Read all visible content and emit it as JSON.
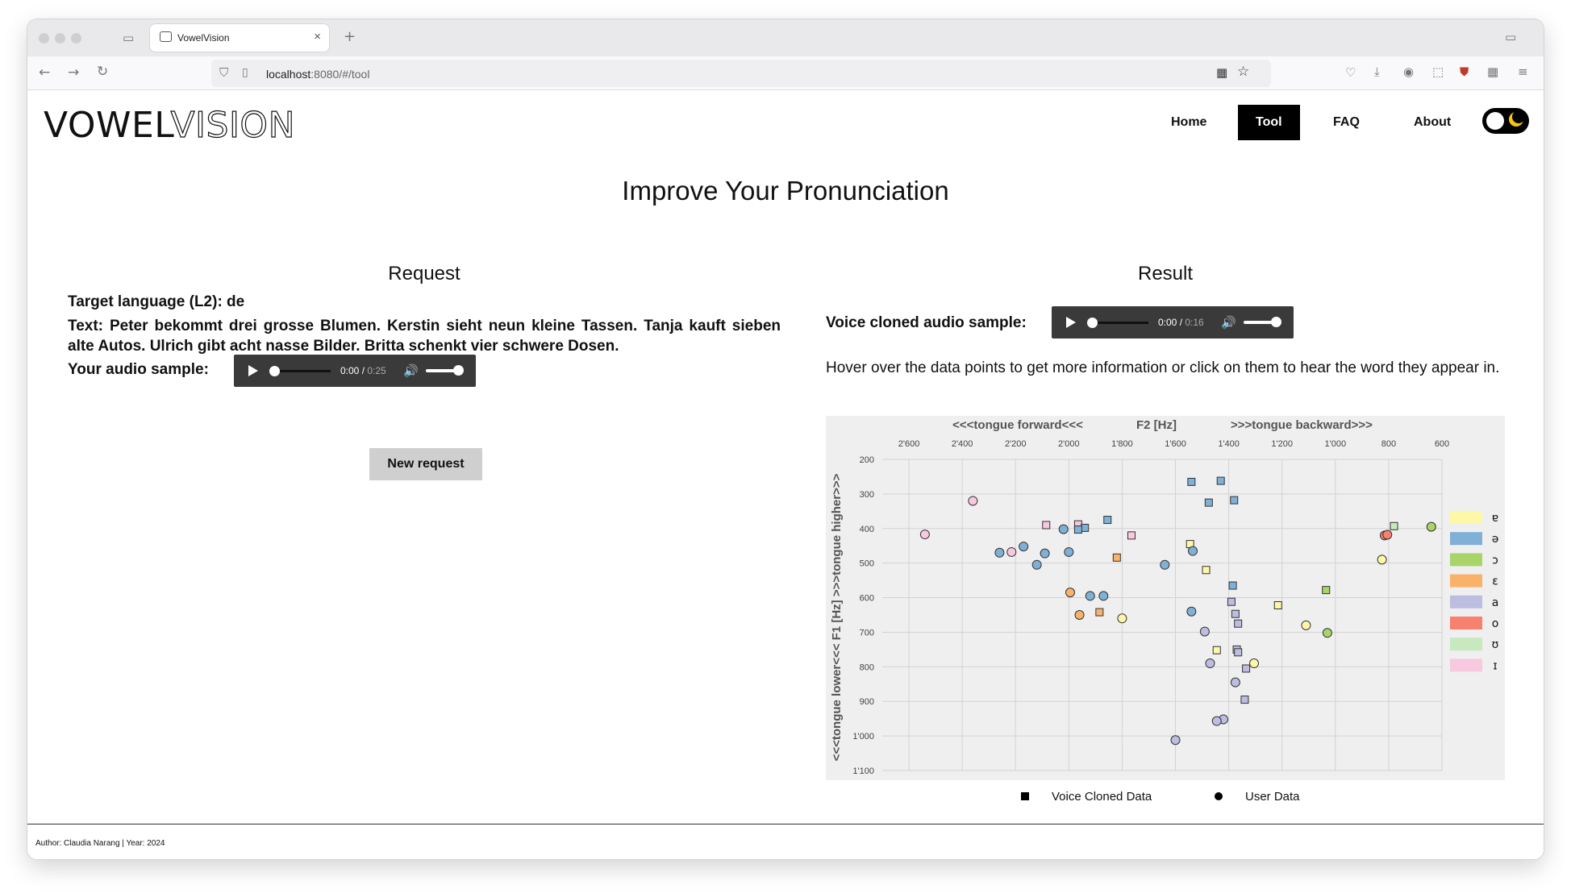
{
  "browser": {
    "tab_title": "VowelVision",
    "url_host": "localhost",
    "url_rest": ":8080/#/tool"
  },
  "header": {
    "logo_bold": "VOWEL",
    "logo_light": "VISION",
    "nav": [
      "Home",
      "Tool",
      "FAQ",
      "About"
    ],
    "active_nav": "Tool"
  },
  "page_title": "Improve Your Pronunciation",
  "request": {
    "title": "Request",
    "target_language": "Target language (L2): de",
    "text": "Text: Peter bekommt drei grosse Blumen. Kerstin sieht neun kleine Tassen. Tanja kauft sieben alte Autos. Ulrich gibt acht nasse Bilder. Britta schenkt vier schwere Dosen.",
    "audio_label": "Your audio sample:",
    "audio_current": "0:00",
    "audio_duration": "0:25",
    "button": "New request"
  },
  "result": {
    "title": "Result",
    "audio_label": "Voice cloned audio sample:",
    "audio_current": "0:00",
    "audio_duration": "0:16",
    "hint": "Hover over the data points to get more information or click on them to hear the word they appear in.",
    "legend_square": "Voice Cloned Data",
    "legend_circle": "User Data"
  },
  "footer": "Author: Claudia Narang | Year: 2024",
  "chart_data": {
    "type": "scatter",
    "x_title_left": "<<<tongue forward<<<",
    "x_title_mid": "F2 [Hz]",
    "x_title_right": ">>>tongue backward>>>",
    "y_title": "<<<tongue lower<<<    F1 [Hz]    >>>tongue higher>>>",
    "xlim": [
      2700,
      600
    ],
    "ylim": [
      200,
      1100
    ],
    "x_ticks": [
      2600,
      2400,
      2200,
      2000,
      1800,
      1600,
      1400,
      1200,
      1000,
      800,
      600
    ],
    "x_tick_labels": [
      "2'600",
      "2'400",
      "2'200",
      "2'000",
      "1'800",
      "1'600",
      "1'400",
      "1'200",
      "1'000",
      "800",
      "600"
    ],
    "y_ticks": [
      200,
      300,
      400,
      500,
      600,
      700,
      800,
      900,
      1000,
      1100
    ],
    "y_tick_labels": [
      "200",
      "300",
      "400",
      "500",
      "600",
      "700",
      "800",
      "900",
      "1'000",
      "1'100"
    ],
    "grid": true,
    "legend_position": "right",
    "vowels": [
      {
        "symbol": "ɐ",
        "color": "#fdf7a8"
      },
      {
        "symbol": "ə",
        "color": "#7fb0d6"
      },
      {
        "symbol": "ɔ",
        "color": "#a8d46a"
      },
      {
        "symbol": "ɛ",
        "color": "#f9b26a"
      },
      {
        "symbol": "a",
        "color": "#bdbde0"
      },
      {
        "symbol": "o",
        "color": "#f7806e"
      },
      {
        "symbol": "ʊ",
        "color": "#c8e8c0"
      },
      {
        "symbol": "ɪ",
        "color": "#f8c8de"
      }
    ],
    "series": [
      {
        "name": "Voice Cloned Data",
        "marker": "square",
        "points": [
          {
            "x": 1540,
            "y": 265,
            "v": "ə"
          },
          {
            "x": 1430,
            "y": 262,
            "v": "ə"
          },
          {
            "x": 1475,
            "y": 325,
            "v": "ə"
          },
          {
            "x": 1380,
            "y": 318,
            "v": "ə"
          },
          {
            "x": 2085,
            "y": 390,
            "v": "ɪ"
          },
          {
            "x": 1965,
            "y": 388,
            "v": "ɪ"
          },
          {
            "x": 1855,
            "y": 375,
            "v": "ə"
          },
          {
            "x": 1940,
            "y": 398,
            "v": "ə"
          },
          {
            "x": 1965,
            "y": 403,
            "v": "ə"
          },
          {
            "x": 1765,
            "y": 420,
            "v": "ɪ"
          },
          {
            "x": 1545,
            "y": 445,
            "v": "ɐ"
          },
          {
            "x": 1485,
            "y": 520,
            "v": "ɐ"
          },
          {
            "x": 1820,
            "y": 484,
            "v": "ɛ"
          },
          {
            "x": 1385,
            "y": 565,
            "v": "ə"
          },
          {
            "x": 1390,
            "y": 612,
            "v": "a"
          },
          {
            "x": 1375,
            "y": 647,
            "v": "a"
          },
          {
            "x": 1365,
            "y": 675,
            "v": "a"
          },
          {
            "x": 1215,
            "y": 622,
            "v": "ɐ"
          },
          {
            "x": 1035,
            "y": 578,
            "v": "ɔ"
          },
          {
            "x": 780,
            "y": 393,
            "v": "ʊ"
          },
          {
            "x": 1885,
            "y": 642,
            "v": "ɛ"
          },
          {
            "x": 1445,
            "y": 752,
            "v": "ɐ"
          },
          {
            "x": 1370,
            "y": 750,
            "v": "a"
          },
          {
            "x": 1365,
            "y": 758,
            "v": "a"
          },
          {
            "x": 1335,
            "y": 805,
            "v": "a"
          },
          {
            "x": 1340,
            "y": 895,
            "v": "a"
          }
        ]
      },
      {
        "name": "User Data",
        "marker": "circle",
        "points": [
          {
            "x": 2540,
            "y": 417,
            "v": "ɪ"
          },
          {
            "x": 2360,
            "y": 320,
            "v": "ɪ"
          },
          {
            "x": 2020,
            "y": 402,
            "v": "ə"
          },
          {
            "x": 2170,
            "y": 452,
            "v": "ə"
          },
          {
            "x": 2260,
            "y": 470,
            "v": "ə"
          },
          {
            "x": 2215,
            "y": 468,
            "v": "ɪ"
          },
          {
            "x": 2090,
            "y": 472,
            "v": "ə"
          },
          {
            "x": 2120,
            "y": 505,
            "v": "ə"
          },
          {
            "x": 2000,
            "y": 468,
            "v": "ə"
          },
          {
            "x": 1535,
            "y": 465,
            "v": "ə"
          },
          {
            "x": 1640,
            "y": 505,
            "v": "ə"
          },
          {
            "x": 1995,
            "y": 585,
            "v": "ɛ"
          },
          {
            "x": 1920,
            "y": 595,
            "v": "ə"
          },
          {
            "x": 1870,
            "y": 595,
            "v": "ə"
          },
          {
            "x": 1960,
            "y": 650,
            "v": "ɛ"
          },
          {
            "x": 1800,
            "y": 660,
            "v": "ɐ"
          },
          {
            "x": 1540,
            "y": 640,
            "v": "ə"
          },
          {
            "x": 1490,
            "y": 698,
            "v": "a"
          },
          {
            "x": 1470,
            "y": 790,
            "v": "a"
          },
          {
            "x": 1375,
            "y": 845,
            "v": "a"
          },
          {
            "x": 1420,
            "y": 952,
            "v": "a"
          },
          {
            "x": 1445,
            "y": 957,
            "v": "a"
          },
          {
            "x": 1600,
            "y": 1012,
            "v": "a"
          },
          {
            "x": 1305,
            "y": 790,
            "v": "ɐ"
          },
          {
            "x": 1110,
            "y": 680,
            "v": "ɐ"
          },
          {
            "x": 1030,
            "y": 702,
            "v": "ɔ"
          },
          {
            "x": 825,
            "y": 490,
            "v": "ɐ"
          },
          {
            "x": 815,
            "y": 420,
            "v": "o"
          },
          {
            "x": 805,
            "y": 418,
            "v": "o"
          },
          {
            "x": 640,
            "y": 395,
            "v": "ɔ"
          }
        ]
      }
    ]
  }
}
